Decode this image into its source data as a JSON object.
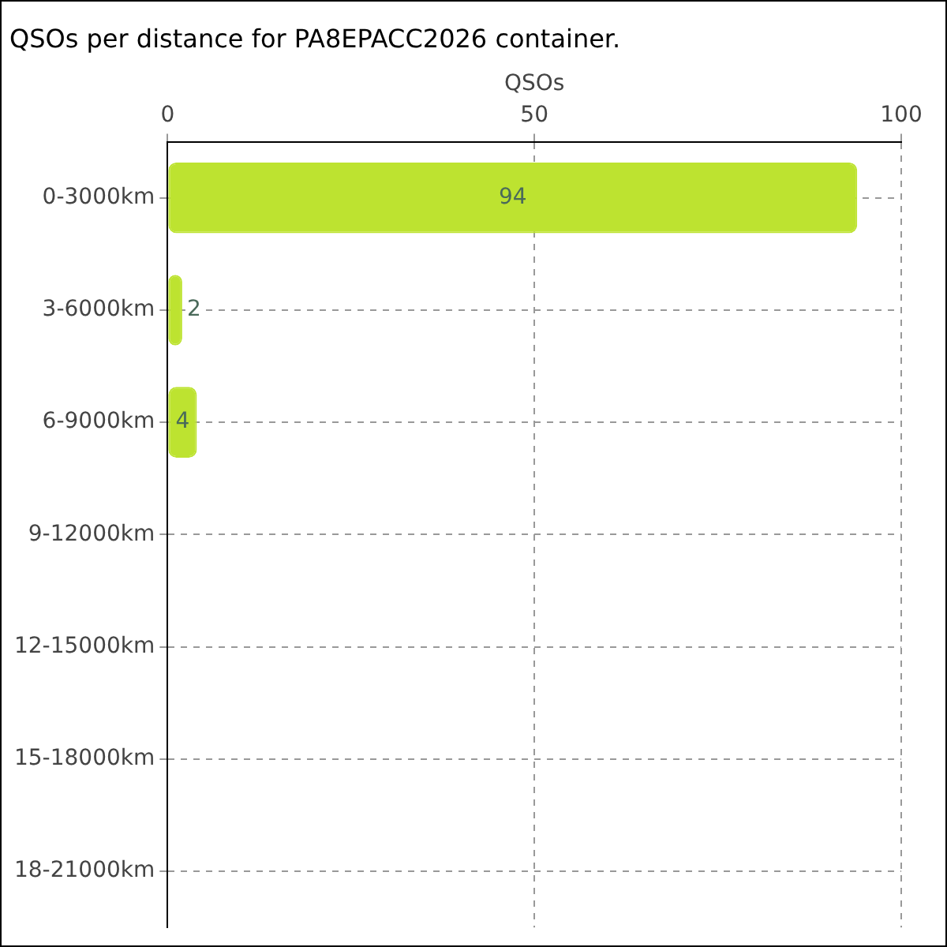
{
  "chart_data": {
    "type": "bar",
    "orientation": "horizontal",
    "title": "QSOs per distance for PA8EPACC2026 container.",
    "xlabel": "QSOs",
    "categories": [
      "0-3000km",
      "3-6000km",
      "6-9000km",
      "9-12000km",
      "12-15000km",
      "15-18000km",
      "18-21000km"
    ],
    "values": [
      94,
      2,
      4,
      0,
      0,
      0,
      0
    ],
    "value_labels": [
      "94",
      "2",
      "4",
      null,
      null,
      null,
      null
    ],
    "color": "#bde330",
    "xlim": [
      0,
      100
    ],
    "xticks": [
      0,
      50,
      100
    ],
    "grid": true,
    "line_style": "dashed",
    "legend": false
  }
}
